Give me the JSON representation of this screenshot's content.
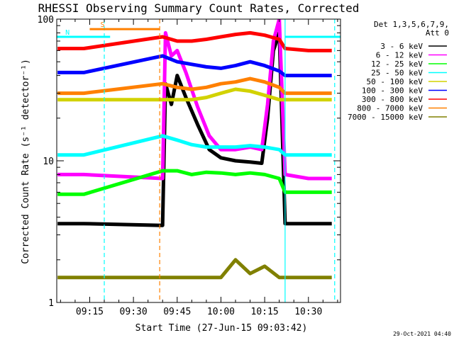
{
  "chart_data": {
    "type": "line",
    "title": "RHESSI Observing Summary Count Rates, Corrected",
    "xlabel": "Start Time (27-Jun-15 09:03:42)",
    "ylabel": "Corrected Count Rate (s⁻¹ detector⁻¹)",
    "y_scale": "log",
    "ylim": [
      1,
      100
    ],
    "xlim": [
      "09:03:42",
      "10:41:00"
    ],
    "x_ticks": [
      "09:15",
      "09:30",
      "09:45",
      "10:00",
      "10:15",
      "10:30"
    ],
    "y_ticks": [
      "1",
      "10",
      "100"
    ],
    "legend_header": [
      "Det 1,3,5,6,7,9,",
      "Att 0"
    ],
    "legend_position": "top-right",
    "footer_date": "29-Oct-2021 04:40",
    "markers": [
      {
        "label": "S",
        "start": "09:15",
        "end": "09:39",
        "level": 85,
        "color": "#ff8000"
      },
      {
        "label": "N",
        "start": "09:03",
        "end": "09:22",
        "level": 75,
        "color": "#00ffff"
      },
      {
        "label": "",
        "start": "10:22",
        "end": "10:41",
        "level": 75,
        "color": "#00ffff"
      }
    ],
    "vlines": [
      {
        "time": "09:20",
        "color": "#00ffff",
        "style": "dashed"
      },
      {
        "time": "09:39",
        "color": "#ff8000",
        "style": "dashed"
      },
      {
        "time": "10:22",
        "color": "#00ffff",
        "style": "solid"
      },
      {
        "time": "10:39",
        "color": "#00ffff",
        "style": "dashed"
      }
    ],
    "series": [
      {
        "name": "3 - 6 keV",
        "color": "#000000",
        "x": [
          "09:04",
          "09:13",
          "09:40",
          "09:41",
          "09:43",
          "09:45",
          "09:48",
          "09:52",
          "09:56",
          "10:00",
          "10:05",
          "10:10",
          "10:14",
          "10:16",
          "10:18",
          "10:20",
          "10:22",
          "10:30",
          "10:38"
        ],
        "y": [
          3.6,
          3.6,
          3.5,
          35,
          25,
          40,
          28,
          18,
          12,
          10.5,
          10,
          9.8,
          9.6,
          20,
          60,
          80,
          3.6,
          3.6,
          3.6
        ]
      },
      {
        "name": "6 - 12 keV",
        "color": "#ff00ff",
        "x": [
          "09:04",
          "09:13",
          "09:40",
          "09:41",
          "09:43",
          "09:45",
          "09:48",
          "09:52",
          "09:56",
          "10:00",
          "10:05",
          "10:10",
          "10:14",
          "10:16",
          "10:18",
          "10:20",
          "10:22",
          "10:30",
          "10:38"
        ],
        "y": [
          8,
          8,
          7.5,
          80,
          55,
          60,
          42,
          24,
          15,
          12,
          12,
          12.5,
          12,
          25,
          70,
          100,
          8,
          7.5,
          7.5
        ]
      },
      {
        "name": "12 - 25 keV",
        "color": "#00ff00",
        "x": [
          "09:04",
          "09:13",
          "09:40",
          "09:45",
          "09:50",
          "09:55",
          "10:00",
          "10:05",
          "10:10",
          "10:15",
          "10:20",
          "10:22",
          "10:30",
          "10:38"
        ],
        "y": [
          5.8,
          5.8,
          8.5,
          8.5,
          8,
          8.3,
          8.2,
          8,
          8.2,
          8,
          7.5,
          6,
          6,
          6
        ]
      },
      {
        "name": "25 - 50 keV",
        "color": "#00ffff",
        "x": [
          "09:04",
          "09:13",
          "09:40",
          "09:45",
          "09:50",
          "09:55",
          "10:00",
          "10:05",
          "10:10",
          "10:15",
          "10:20",
          "10:22",
          "10:30",
          "10:38"
        ],
        "y": [
          11,
          11,
          15,
          14,
          13,
          12.5,
          12.5,
          12.5,
          12.8,
          12.5,
          12,
          11,
          11,
          11
        ]
      },
      {
        "name": "50 - 100 keV",
        "color": "#d2d200",
        "x": [
          "09:04",
          "09:13",
          "09:40",
          "09:45",
          "09:50",
          "09:55",
          "10:00",
          "10:05",
          "10:10",
          "10:15",
          "10:20",
          "10:22",
          "10:30",
          "10:38"
        ],
        "y": [
          27,
          27,
          27,
          27,
          27,
          28,
          30,
          32,
          31,
          29,
          27,
          27,
          27,
          27
        ]
      },
      {
        "name": "100 - 300 keV",
        "color": "#0000ff",
        "x": [
          "09:04",
          "09:13",
          "09:40",
          "09:45",
          "09:50",
          "09:55",
          "10:00",
          "10:05",
          "10:10",
          "10:15",
          "10:20",
          "10:22",
          "10:30",
          "10:38"
        ],
        "y": [
          42,
          42,
          55,
          50,
          48,
          46,
          45,
          47,
          50,
          47,
          43,
          40,
          40,
          40
        ]
      },
      {
        "name": "300 - 800 keV",
        "color": "#ff0000",
        "x": [
          "09:04",
          "09:13",
          "09:40",
          "09:45",
          "09:50",
          "09:55",
          "10:00",
          "10:05",
          "10:10",
          "10:15",
          "10:20",
          "10:22",
          "10:30",
          "10:38"
        ],
        "y": [
          62,
          62,
          75,
          70,
          70,
          72,
          75,
          78,
          80,
          77,
          72,
          62,
          60,
          60
        ]
      },
      {
        "name": "800 - 7000 keV",
        "color": "#ff8000",
        "x": [
          "09:04",
          "09:13",
          "09:40",
          "09:45",
          "09:50",
          "09:55",
          "10:00",
          "10:05",
          "10:10",
          "10:15",
          "10:20",
          "10:22",
          "10:30",
          "10:38"
        ],
        "y": [
          30,
          30,
          35,
          33,
          32,
          33,
          35,
          36,
          38,
          36,
          33,
          30,
          30,
          30
        ]
      },
      {
        "name": "7000 - 15000 keV",
        "color": "#808000",
        "x": [
          "09:04",
          "09:13",
          "09:40",
          "09:45",
          "09:50",
          "09:55",
          "10:00",
          "10:05",
          "10:10",
          "10:15",
          "10:20",
          "10:22",
          "10:30",
          "10:38"
        ],
        "y": [
          1.5,
          1.5,
          1.5,
          1.5,
          1.5,
          1.5,
          1.5,
          2.0,
          1.6,
          1.8,
          1.5,
          1.5,
          1.5,
          1.5
        ]
      }
    ]
  }
}
